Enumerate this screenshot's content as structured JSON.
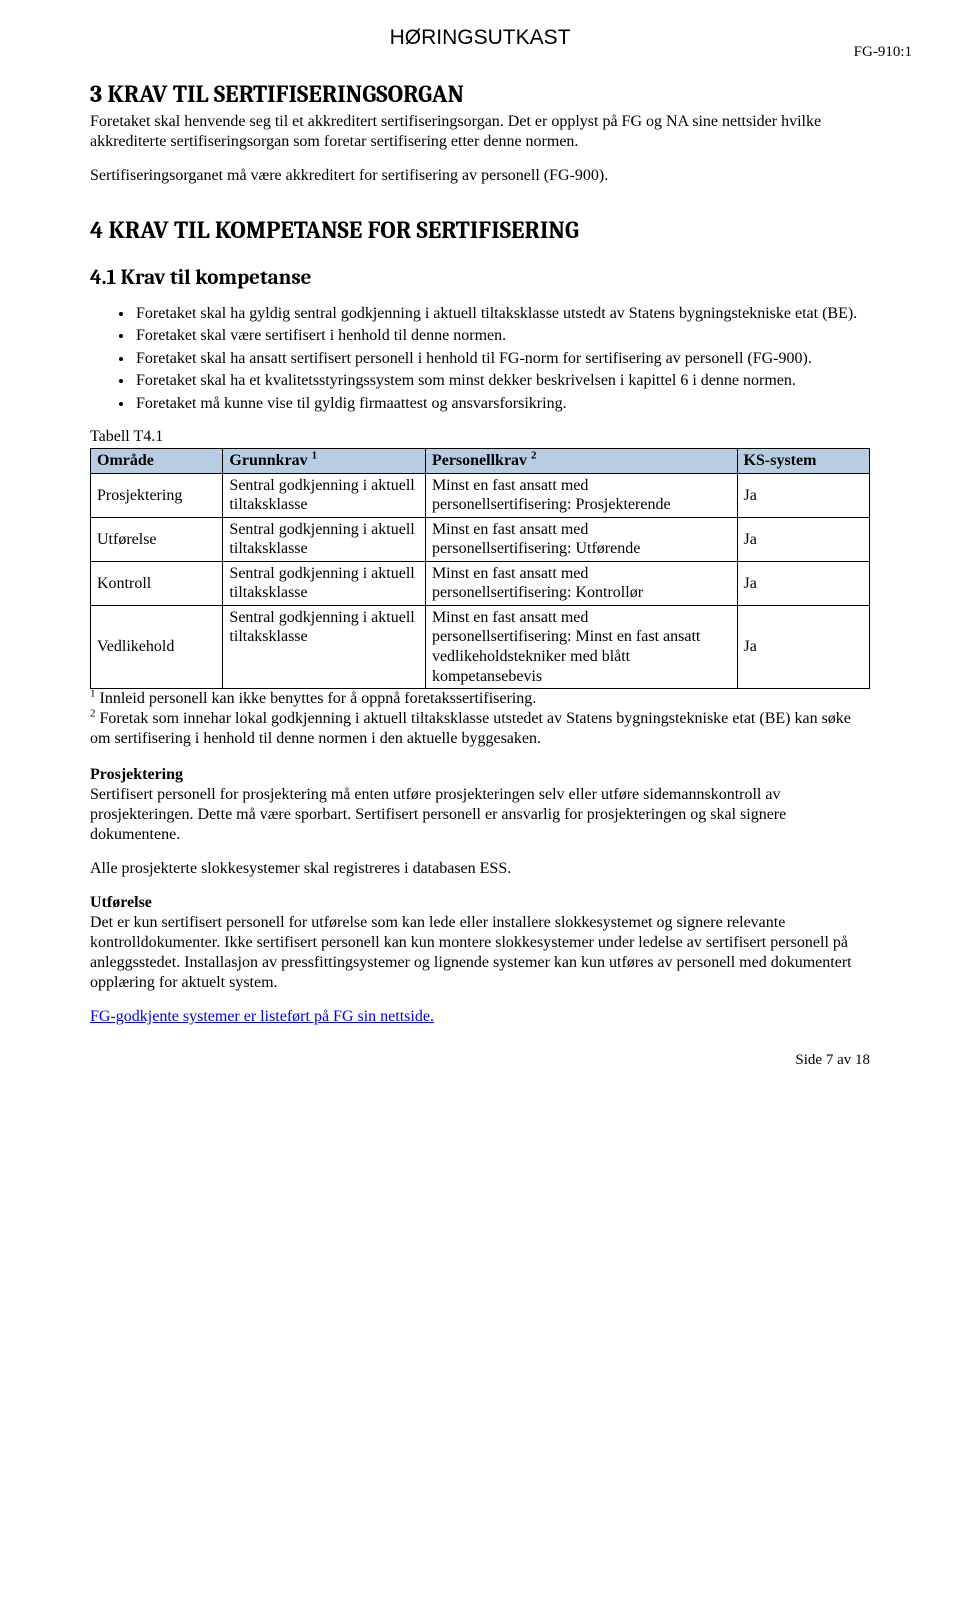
{
  "header": {
    "banner": "HØRINGSUTKAST",
    "doc_code": "FG-910:1"
  },
  "section3": {
    "title": "3 KRAV TIL SERTIFISERINGSORGAN",
    "p1": "Foretaket skal henvende seg til et akkreditert sertifiseringsorgan. Det er opplyst på FG og NA sine nettsider hvilke akkrediterte sertifiseringsorgan som foretar sertifisering etter denne normen.",
    "p2": "Sertifiseringsorganet må være akkreditert for sertifisering av personell (FG-900)."
  },
  "section4": {
    "title": "4 KRAV TIL KOMPETANSE FOR SERTIFISERING",
    "sub41": "4.1 Krav til kompetanse",
    "bullets": [
      "Foretaket skal ha gyldig sentral godkjenning i aktuell tiltaksklasse utstedt av Statens bygningstekniske etat (BE).",
      "Foretaket skal være sertifisert i henhold til denne normen.",
      "Foretaket skal ha ansatt sertifisert personell i henhold til FG-norm for sertifisering av personell (FG-900).",
      "Foretaket skal ha et kvalitetsstyringssystem som minst dekker beskrivelsen i kapittel 6 i denne normen.",
      "Foretaket må kunne vise til gyldig firmaattest og ansvarsforsikring."
    ]
  },
  "table": {
    "label": "Tabell T4.1",
    "headers": {
      "area": "Område",
      "grunn_pre": "Grunnkrav ",
      "grunn_sup": "1",
      "person_pre": "Personellkrav ",
      "person_sup": "2",
      "ks": "KS-system"
    },
    "header_bg": "#b8cce4",
    "border_color": "#000000",
    "rows": [
      {
        "area": "Prosjektering",
        "grunn": "Sentral godkjenning i aktuell tiltaksklasse",
        "person": "Minst en fast ansatt med personellsertifisering: Prosjekterende",
        "ks": "Ja"
      },
      {
        "area": "Utførelse",
        "grunn": "Sentral godkjenning i aktuell tiltaksklasse",
        "person": "Minst en fast ansatt med personellsertifisering: Utførende",
        "ks": "Ja"
      },
      {
        "area": "Kontroll",
        "grunn": "Sentral godkjenning i aktuell tiltaksklasse",
        "person": "Minst en fast ansatt med personellsertifisering: Kontrollør",
        "ks": "Ja"
      },
      {
        "area": "Vedlikehold",
        "grunn": "Sentral godkjenning i aktuell tiltaksklasse",
        "person": "Minst en fast ansatt med personellsertifisering: Minst en fast ansatt vedlikeholdstekniker med blått kompetansebevis",
        "ks": "Ja"
      }
    ]
  },
  "footnotes": {
    "f1_sup": "1",
    "f1": " Innleid personell kan ikke benyttes for å oppnå foretakssertifisering.",
    "f2_sup": "2",
    "f2": " Foretak som innehar lokal godkjenning i aktuell tiltaksklasse utstedet av Statens bygningstekniske etat (BE) kan søke om sertifisering i henhold til denne normen i den aktuelle byggesaken."
  },
  "prosjektering": {
    "title": "Prosjektering",
    "p1": "Sertifisert personell for prosjektering må enten utføre prosjekteringen selv eller utføre sidemannskontroll av prosjekteringen. Dette må være sporbart. Sertifisert personell er ansvarlig for prosjekteringen og skal signere dokumentene.",
    "p2": "Alle prosjekterte slokkesystemer skal registreres i databasen ESS."
  },
  "utforelse": {
    "title": "Utførelse",
    "p1": "Det er kun sertifisert personell for utførelse som kan lede eller installere slokkesystemet og signere relevante kontrolldokumenter. Ikke sertifisert personell kan kun montere slokkesystemer under ledelse av sertifisert personell på anleggsstedet. Installasjon av pressfittingsystemer og lignende systemer kan kun utføres av personell med dokumentert opplæring for aktuelt system."
  },
  "link": {
    "text": "FG-godkjente systemer er listeført på FG sin nettside.",
    "color": "#0000ee"
  },
  "footer": {
    "page_num": "Side 7 av 18"
  }
}
